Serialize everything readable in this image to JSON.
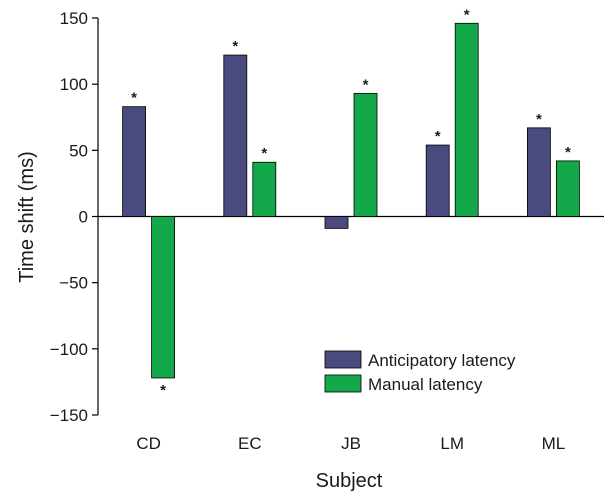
{
  "chart_data": {
    "type": "bar",
    "title": "",
    "xlabel": "Subject",
    "ylabel": "Time shift (ms)",
    "ylim": [
      -150,
      150
    ],
    "yticks": [
      -150,
      -100,
      -50,
      0,
      50,
      100,
      150
    ],
    "ytick_labels": [
      "−150",
      "−100",
      "−50",
      "0",
      "50",
      "100",
      "150"
    ],
    "categories": [
      "CD",
      "EC",
      "JB",
      "LM",
      "ML"
    ],
    "series": [
      {
        "name": "Anticipatory latency",
        "color": "#4b4a7e",
        "values": [
          83,
          122,
          -9,
          54,
          67
        ],
        "significance": [
          "*",
          "*",
          "",
          "*",
          "*"
        ]
      },
      {
        "name": "Manual latency",
        "color": "#13a84a",
        "values": [
          -122,
          41,
          93,
          146,
          42
        ],
        "significance": [
          "*",
          "*",
          "*",
          "*",
          "*"
        ]
      }
    ],
    "grid": false,
    "legend": "bottom-right"
  }
}
